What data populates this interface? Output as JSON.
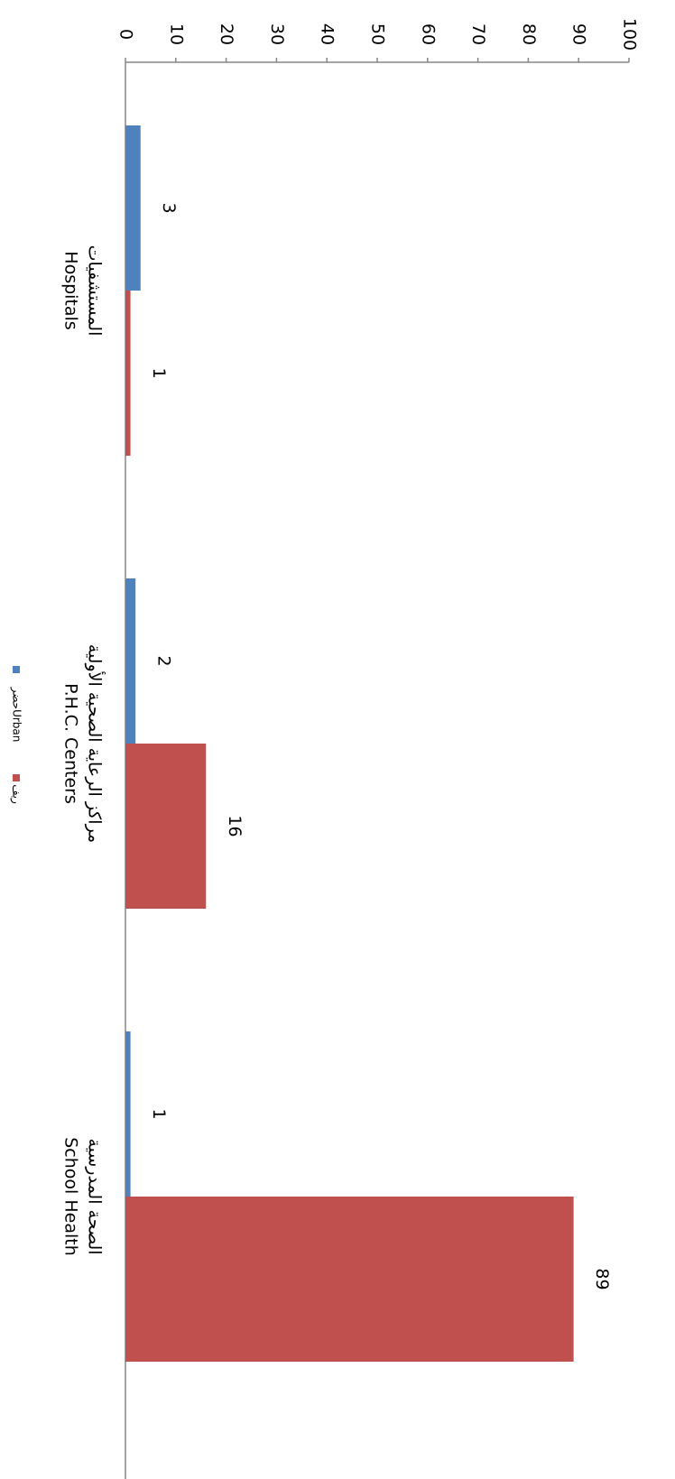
{
  "chart_data": {
    "type": "bar",
    "orientation": "vertical (image rotated 90° clockwise)",
    "categories": [
      {
        "ar": "المستشفيات",
        "en": "Hospitals"
      },
      {
        "ar": "مراكز الرعاية الصحية الأولية",
        "en": "P.H.C. Centers"
      },
      {
        "ar": "الصحة المدرسية",
        "en": "School Health"
      }
    ],
    "series": [
      {
        "name": "حضرUrban",
        "color": "#4F81BD",
        "values": [
          3,
          2,
          1
        ]
      },
      {
        "name": "ريف",
        "color": "#C0504D",
        "values": [
          1,
          16,
          89
        ]
      }
    ],
    "ylim": [
      0,
      100
    ],
    "yticks": [
      "0",
      "10",
      "20",
      "30",
      "40",
      "50",
      "60",
      "70",
      "80",
      "90",
      "100"
    ],
    "data_labels": [
      [
        "3",
        "2",
        "1"
      ],
      [
        "1",
        "16",
        "89"
      ]
    ],
    "legend_position": "bottom",
    "grid": false
  }
}
